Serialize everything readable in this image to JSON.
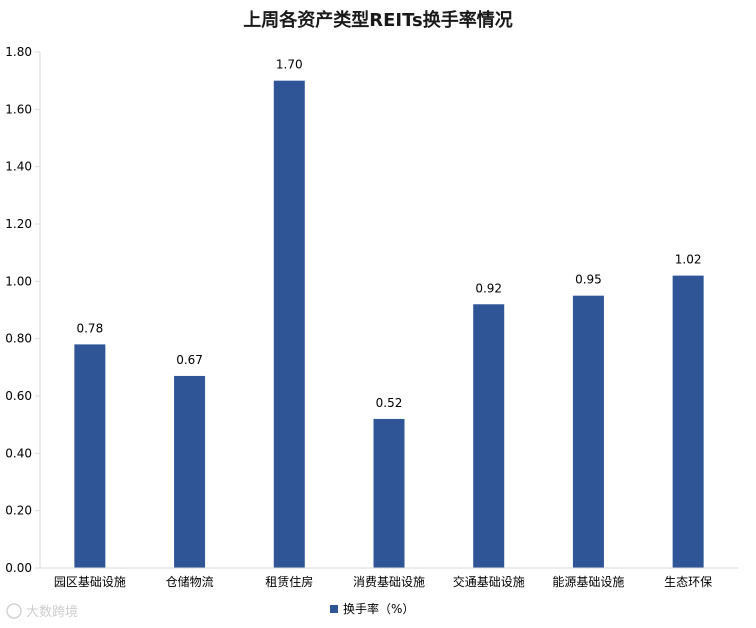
{
  "chart_data": {
    "type": "bar",
    "title": "上周各资产类型REITs换手率情况",
    "categories": [
      "园区基础设施",
      "仓储物流",
      "租赁住房",
      "消费基础设施",
      "交通基础设施",
      "能源基础设施",
      "生态环保"
    ],
    "series": [
      {
        "name": "换手率（%）",
        "values": [
          0.78,
          0.67,
          1.7,
          0.52,
          0.92,
          0.95,
          1.02
        ],
        "color": "#2f5597"
      }
    ],
    "data_labels": [
      "0.78",
      "0.67",
      "1.70",
      "0.52",
      "0.92",
      "0.95",
      "1.02"
    ],
    "yticks": [
      "0.00",
      "0.20",
      "0.40",
      "0.60",
      "0.80",
      "1.00",
      "1.20",
      "1.40",
      "1.60",
      "1.80"
    ],
    "ylim": [
      0,
      1.8
    ],
    "grid": false,
    "legend_position": "bottom"
  },
  "watermark": "大数跨境",
  "watermark_icon": "logo-icon"
}
